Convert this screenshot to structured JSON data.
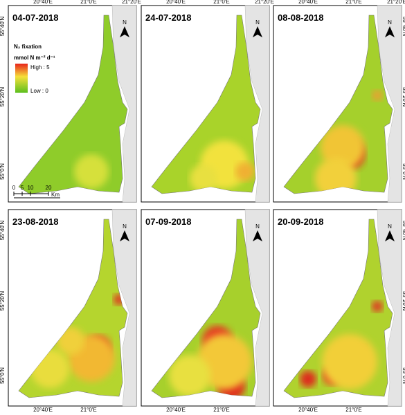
{
  "panels": [
    {
      "date": "04-07-2018"
    },
    {
      "date": "24-07-2018"
    },
    {
      "date": "08-08-2018"
    },
    {
      "date": "23-08-2018"
    },
    {
      "date": "07-09-2018"
    },
    {
      "date": "20-09-2018"
    }
  ],
  "legend": {
    "title": "N₂ fixation",
    "units": "mmol N m⁻² d⁻¹",
    "high": "High : 5",
    "low": "Low : 0"
  },
  "scale_bar": {
    "labels": [
      "0",
      "5",
      "10",
      "20"
    ],
    "unit": "Km"
  },
  "north_label": "N",
  "axes": {
    "top": [
      "20°40'E",
      "21°0'E",
      "21°20'E"
    ],
    "bottom": [
      "20°40'E",
      "21°0'E"
    ],
    "left": [
      "55°40'N",
      "55°20'N",
      "55°0'N"
    ],
    "right": [
      "55°40'N",
      "55°20'N",
      "55°0'N"
    ]
  }
}
